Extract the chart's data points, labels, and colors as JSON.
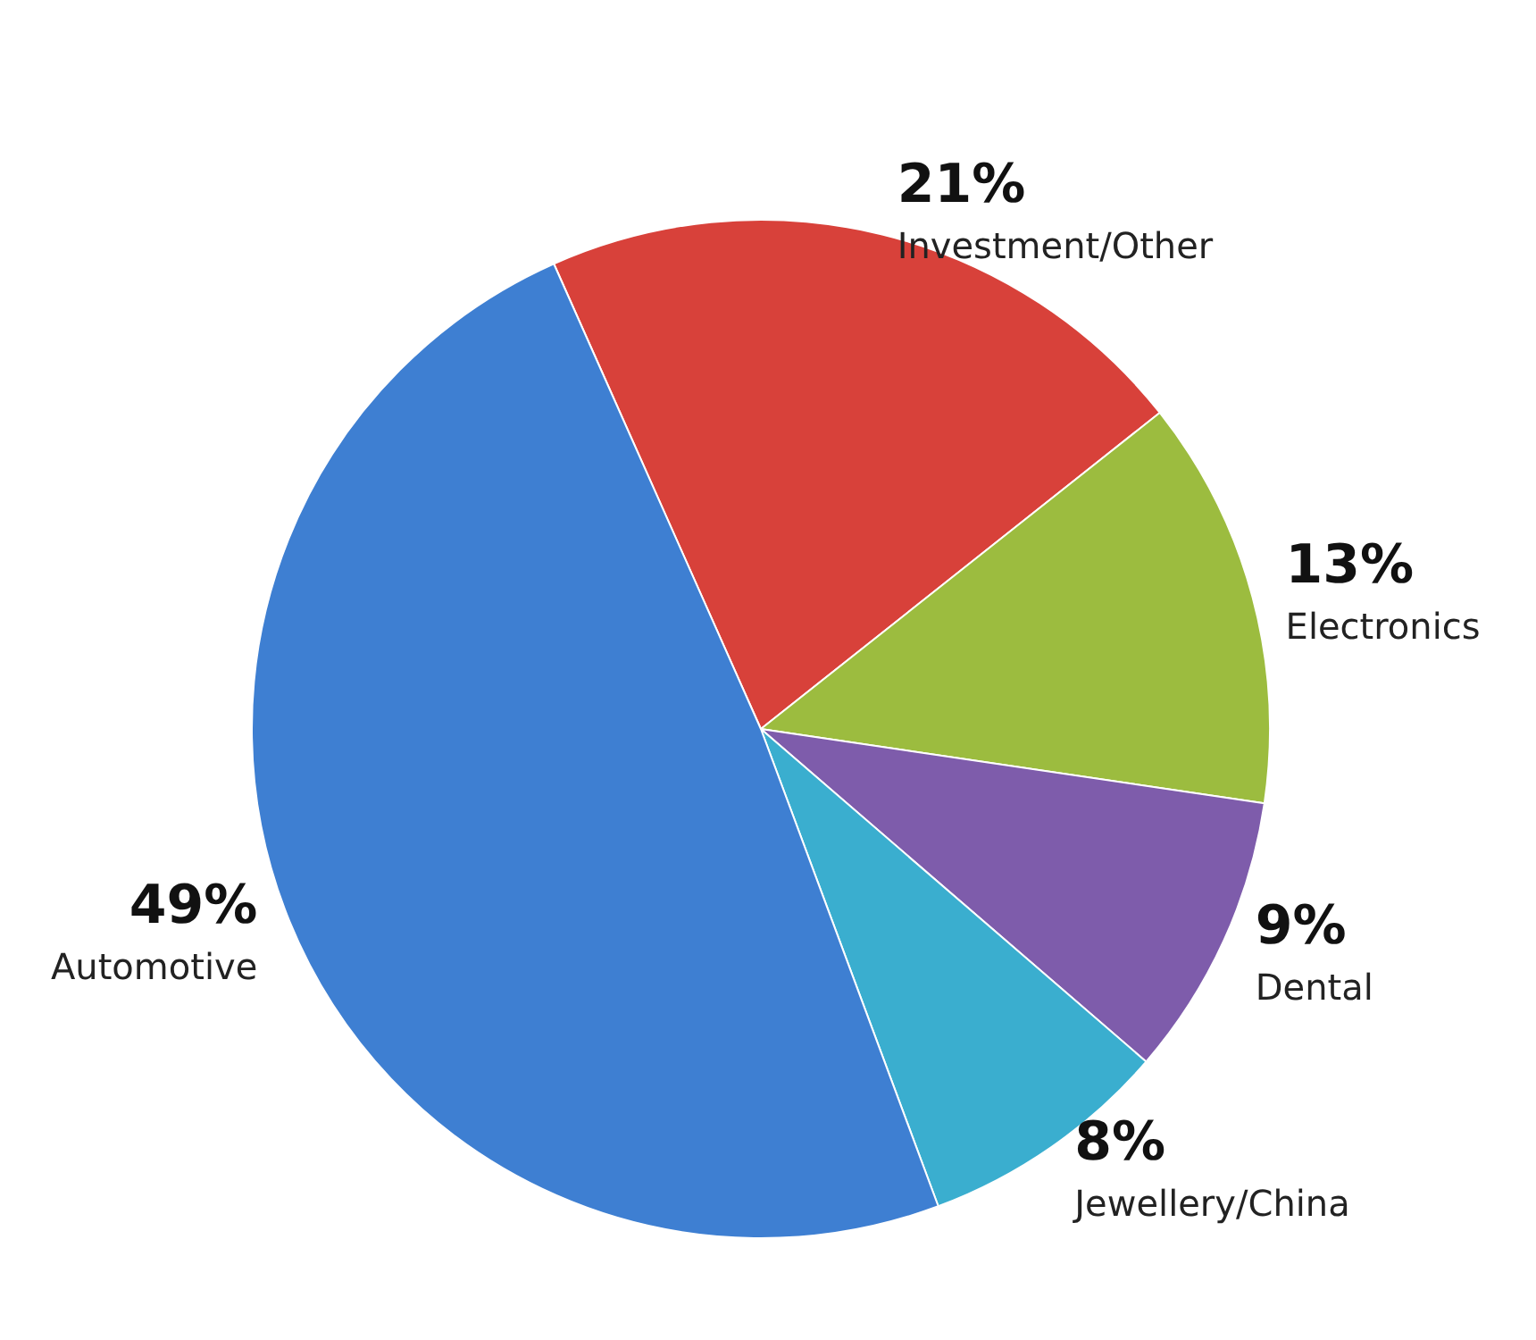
{
  "chart_data": {
    "type": "pie",
    "categories": [
      "Investment/Other",
      "Electronics",
      "Dental",
      "Jewellery/China",
      "Automotive"
    ],
    "values": [
      21,
      13,
      9,
      8,
      49
    ],
    "colors": [
      "#d8413a",
      "#9cbc3f",
      "#7e5cab",
      "#3aaecf",
      "#3e7fd2"
    ],
    "value_labels": [
      "21%",
      "13%",
      "9%",
      "8%",
      "49%"
    ]
  }
}
